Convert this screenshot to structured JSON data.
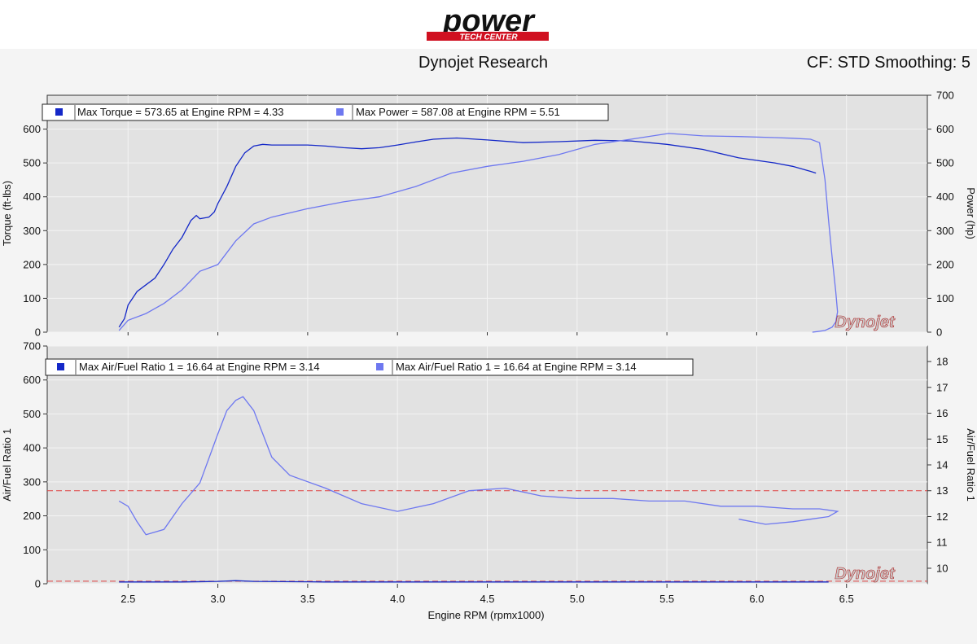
{
  "header": {
    "logo_word": "power",
    "logo_sub": "TECH CENTER",
    "title": "Dynojet Research",
    "settings": "CF: STD Smoothing: 5",
    "watermark": "Dynojet"
  },
  "colors": {
    "series_dark": "#1428c8",
    "series_light": "#6e78f0",
    "ref_line": "#e04040",
    "plot_bg": "#e2e2e2",
    "logo_red": "#d01020"
  },
  "chart_data": [
    {
      "type": "line",
      "xlabel": "Engine RPM (rpmx1000)",
      "ylabel": "Torque (ft-lbs)",
      "ylabel_right": "Power (hp)",
      "xlim": [
        2.05,
        6.95
      ],
      "ylim": [
        0,
        700
      ],
      "ylim_right": [
        0,
        700
      ],
      "yticks": [
        0,
        100,
        200,
        300,
        400,
        500,
        600
      ],
      "yticks_right": [
        0,
        100,
        200,
        300,
        400,
        500,
        600,
        700
      ],
      "grid": true,
      "legend": [
        "Max Torque = 573.65 at Engine RPM = 4.33",
        "Max Power = 587.08 at Engine RPM = 5.51"
      ],
      "series": [
        {
          "name": "Torque",
          "x": [
            2.45,
            2.48,
            2.5,
            2.55,
            2.6,
            2.65,
            2.7,
            2.75,
            2.8,
            2.85,
            2.88,
            2.9,
            2.95,
            2.98,
            3.0,
            3.05,
            3.1,
            3.15,
            3.2,
            3.25,
            3.3,
            3.4,
            3.5,
            3.6,
            3.7,
            3.8,
            3.9,
            4.0,
            4.1,
            4.2,
            4.33,
            4.5,
            4.7,
            4.9,
            5.1,
            5.3,
            5.5,
            5.7,
            5.9,
            6.1,
            6.2,
            6.3,
            6.33
          ],
          "y": [
            15,
            40,
            80,
            120,
            140,
            160,
            200,
            245,
            280,
            330,
            345,
            335,
            340,
            355,
            380,
            430,
            490,
            530,
            550,
            555,
            553,
            553,
            553,
            550,
            545,
            542,
            545,
            553,
            562,
            570,
            573.65,
            568,
            560,
            563,
            567,
            565,
            555,
            540,
            515,
            500,
            490,
            475,
            470
          ]
        },
        {
          "name": "Power",
          "x": [
            2.45,
            2.5,
            2.6,
            2.7,
            2.8,
            2.9,
            3.0,
            3.1,
            3.2,
            3.3,
            3.5,
            3.7,
            3.9,
            4.1,
            4.3,
            4.5,
            4.7,
            4.9,
            5.1,
            5.3,
            5.51,
            5.7,
            5.9,
            6.1,
            6.2,
            6.3,
            6.35,
            6.38,
            6.4,
            6.42,
            6.44,
            6.45,
            6.44,
            6.42,
            6.38,
            6.34,
            6.31
          ],
          "y": [
            5,
            35,
            55,
            85,
            125,
            180,
            200,
            270,
            320,
            340,
            365,
            385,
            400,
            430,
            470,
            490,
            505,
            525,
            555,
            570,
            587.08,
            580,
            578,
            575,
            573,
            570,
            560,
            450,
            330,
            220,
            120,
            60,
            30,
            15,
            5,
            2,
            0
          ]
        }
      ]
    },
    {
      "type": "line",
      "xlabel": "Engine RPM (rpmx1000)",
      "ylabel": "Air/Fuel Ratio 1",
      "ylabel_right": "Air/Fuel Ratio 1",
      "xlim": [
        2.05,
        6.95
      ],
      "ylim": [
        0,
        700
      ],
      "ylim_right": [
        9.4,
        18.6
      ],
      "yticks": [
        0,
        100,
        200,
        300,
        400,
        500,
        600,
        700
      ],
      "yticks_right": [
        10,
        11,
        12,
        13,
        14,
        15,
        16,
        17,
        18
      ],
      "xticks": [
        2.5,
        3.0,
        3.5,
        4.0,
        4.5,
        5.0,
        5.5,
        6.0,
        6.5
      ],
      "xtick_labels": [
        "2.5",
        "3.0",
        "3.5",
        "4.0",
        "4.5",
        "5.0",
        "5.5",
        "6.0",
        "6.5"
      ],
      "grid": true,
      "legend": [
        "Max Air/Fuel Ratio 1 = 16.64 at Engine RPM = 3.14",
        "Max Air/Fuel Ratio 1 = 16.64 at Engine RPM = 3.14"
      ],
      "reference_lines_right": [
        13.0,
        9.5
      ],
      "series": [
        {
          "name": "Air/Fuel Ratio 1 (dark)",
          "x": [
            2.45,
            2.8,
            3.0,
            3.1,
            3.2,
            3.6,
            6.4
          ],
          "y": [
            9.47,
            9.47,
            9.49,
            9.52,
            9.49,
            9.47,
            9.47
          ]
        },
        {
          "name": "Air/Fuel Ratio 1 (light)",
          "x": [
            2.45,
            2.5,
            2.55,
            2.6,
            2.7,
            2.8,
            2.9,
            3.0,
            3.05,
            3.1,
            3.14,
            3.2,
            3.3,
            3.4,
            3.6,
            3.8,
            4.0,
            4.2,
            4.4,
            4.6,
            4.8,
            5.0,
            5.2,
            5.4,
            5.6,
            5.8,
            6.0,
            6.2,
            6.35,
            6.45,
            6.4,
            6.3,
            6.2,
            6.05,
            5.9
          ],
          "y": [
            12.6,
            12.4,
            11.8,
            11.3,
            11.5,
            12.5,
            13.3,
            15.2,
            16.1,
            16.5,
            16.64,
            16.1,
            14.3,
            13.6,
            13.1,
            12.5,
            12.2,
            12.5,
            13.0,
            13.1,
            12.8,
            12.7,
            12.7,
            12.6,
            12.6,
            12.4,
            12.4,
            12.3,
            12.3,
            12.2,
            12.0,
            11.9,
            11.8,
            11.7,
            11.9
          ]
        }
      ]
    }
  ]
}
